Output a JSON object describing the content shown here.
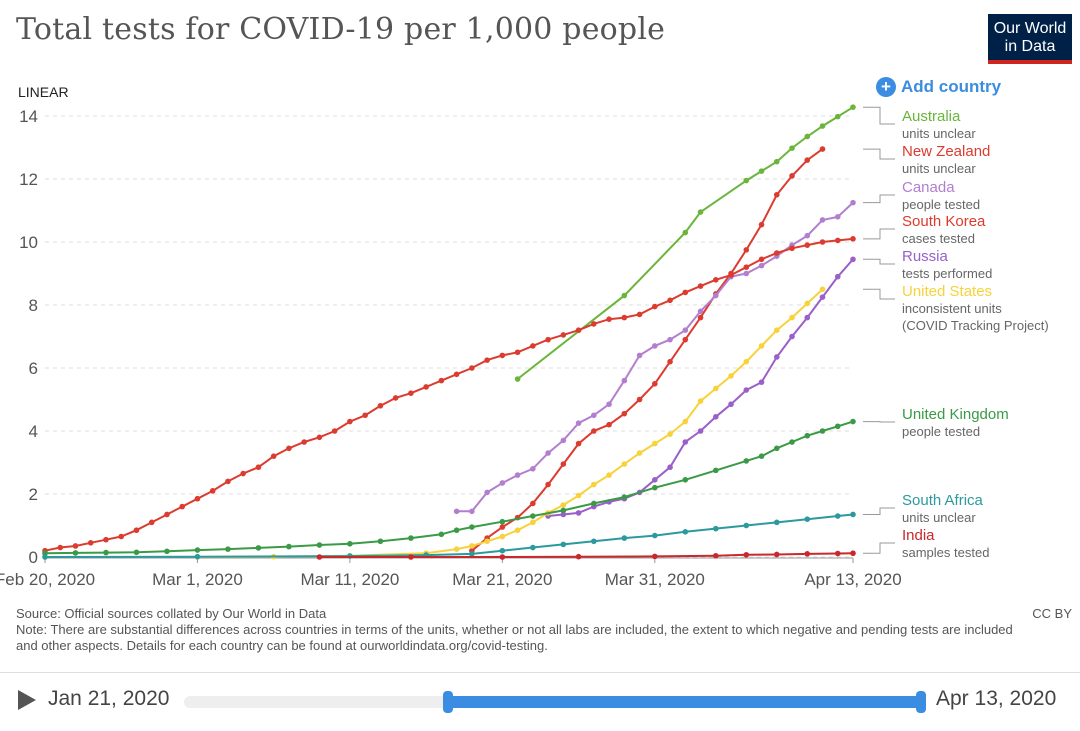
{
  "header": {
    "title": "Total tests for COVID-19 per 1,000 people",
    "logo_line1": "Our World",
    "logo_line2": "in Data",
    "scale_label": "LINEAR",
    "add_country_label": "Add country"
  },
  "footer": {
    "source": "Source: Official sources collated by Our World in Data",
    "note": "Note: There are substantial differences across countries in terms of the units, whether or not all labs are included, the extent to which negative and pending tests are included and other aspects. Details for each country can be found at ourworldindata.org/covid-testing.",
    "license": "CC BY"
  },
  "timeline": {
    "start_label": "Jan 21, 2020",
    "end_label": "Apr 13, 2020",
    "colors": {
      "track": "#eeeeee",
      "range": "#3a8de0"
    }
  },
  "chart_data": {
    "type": "line",
    "title": "Total tests for COVID-19 per 1,000 people",
    "xlabel": "",
    "ylabel": "",
    "scale": "linear",
    "x_start": "2020-02-20",
    "x_end": "2020-04-13",
    "x_ticks": [
      {
        "day": 0,
        "label": "Feb 20, 2020"
      },
      {
        "day": 10,
        "label": "Mar 1, 2020"
      },
      {
        "day": 20,
        "label": "Mar 11, 2020"
      },
      {
        "day": 30,
        "label": "Mar 21, 2020"
      },
      {
        "day": 40,
        "label": "Mar 31, 2020"
      },
      {
        "day": 53,
        "label": "Apr 13, 2020"
      }
    ],
    "ylim": [
      0,
      14
    ],
    "y_ticks": [
      0,
      2,
      4,
      6,
      8,
      10,
      12,
      14
    ],
    "grid": "horizontal dashed",
    "legend": "right",
    "series": [
      {
        "name": "Australia",
        "unit": "units unclear",
        "color": "#6ab53a",
        "points": [
          [
            31,
            5.65
          ],
          [
            38,
            8.3
          ],
          [
            42,
            10.3
          ],
          [
            43,
            10.95
          ],
          [
            46,
            11.95
          ],
          [
            47,
            12.25
          ],
          [
            48,
            12.55
          ],
          [
            49,
            12.98
          ],
          [
            50,
            13.35
          ],
          [
            51,
            13.68
          ],
          [
            52,
            13.98
          ],
          [
            53,
            14.28
          ]
        ]
      },
      {
        "name": "New Zealand",
        "unit": "units unclear",
        "color": "#dc3b2f",
        "points": [
          [
            28,
            0.2
          ],
          [
            29,
            0.6
          ],
          [
            30,
            0.95
          ],
          [
            31,
            1.25
          ],
          [
            32,
            1.7
          ],
          [
            33,
            2.3
          ],
          [
            34,
            2.95
          ],
          [
            35,
            3.6
          ],
          [
            36,
            4.0
          ],
          [
            37,
            4.2
          ],
          [
            38,
            4.55
          ],
          [
            39,
            5.0
          ],
          [
            40,
            5.5
          ],
          [
            41,
            6.2
          ],
          [
            42,
            6.9
          ],
          [
            43,
            7.6
          ],
          [
            44,
            8.35
          ],
          [
            45,
            9.0
          ],
          [
            46,
            9.75
          ],
          [
            47,
            10.55
          ],
          [
            48,
            11.5
          ],
          [
            49,
            12.1
          ],
          [
            50,
            12.6
          ],
          [
            51,
            12.95
          ]
        ]
      },
      {
        "name": "Canada",
        "unit": "people tested",
        "color": "#b27fcf",
        "points": [
          [
            27,
            1.45
          ],
          [
            28,
            1.45
          ],
          [
            29,
            2.05
          ],
          [
            30,
            2.35
          ],
          [
            31,
            2.6
          ],
          [
            32,
            2.8
          ],
          [
            33,
            3.3
          ],
          [
            34,
            3.7
          ],
          [
            35,
            4.25
          ],
          [
            36,
            4.5
          ],
          [
            37,
            4.85
          ],
          [
            38,
            5.6
          ],
          [
            39,
            6.4
          ],
          [
            40,
            6.7
          ],
          [
            41,
            6.9
          ],
          [
            42,
            7.2
          ],
          [
            43,
            7.8
          ],
          [
            44,
            8.3
          ],
          [
            45,
            8.9
          ],
          [
            46,
            9.0
          ],
          [
            47,
            9.25
          ],
          [
            48,
            9.55
          ],
          [
            49,
            9.9
          ],
          [
            50,
            10.2
          ],
          [
            51,
            10.7
          ],
          [
            52,
            10.8
          ],
          [
            53,
            11.25
          ]
        ]
      },
      {
        "name": "South Korea",
        "unit": "cases tested",
        "color": "#dc3b2f",
        "points": [
          [
            0,
            0.2
          ],
          [
            1,
            0.3
          ],
          [
            2,
            0.35
          ],
          [
            3,
            0.45
          ],
          [
            4,
            0.55
          ],
          [
            5,
            0.65
          ],
          [
            6,
            0.85
          ],
          [
            7,
            1.1
          ],
          [
            8,
            1.35
          ],
          [
            9,
            1.6
          ],
          [
            10,
            1.85
          ],
          [
            11,
            2.1
          ],
          [
            12,
            2.4
          ],
          [
            13,
            2.65
          ],
          [
            14,
            2.85
          ],
          [
            15,
            3.2
          ],
          [
            16,
            3.45
          ],
          [
            17,
            3.65
          ],
          [
            18,
            3.8
          ],
          [
            19,
            4.0
          ],
          [
            20,
            4.3
          ],
          [
            21,
            4.5
          ],
          [
            22,
            4.8
          ],
          [
            23,
            5.05
          ],
          [
            24,
            5.2
          ],
          [
            25,
            5.4
          ],
          [
            26,
            5.6
          ],
          [
            27,
            5.8
          ],
          [
            28,
            6.0
          ],
          [
            29,
            6.25
          ],
          [
            30,
            6.4
          ],
          [
            31,
            6.5
          ],
          [
            32,
            6.7
          ],
          [
            33,
            6.9
          ],
          [
            34,
            7.05
          ],
          [
            35,
            7.2
          ],
          [
            36,
            7.4
          ],
          [
            37,
            7.55
          ],
          [
            38,
            7.6
          ],
          [
            39,
            7.7
          ],
          [
            40,
            7.95
          ],
          [
            41,
            8.15
          ],
          [
            42,
            8.4
          ],
          [
            43,
            8.6
          ],
          [
            44,
            8.8
          ],
          [
            45,
            8.95
          ],
          [
            46,
            9.2
          ],
          [
            47,
            9.45
          ],
          [
            48,
            9.65
          ],
          [
            49,
            9.8
          ],
          [
            50,
            9.9
          ],
          [
            51,
            10.0
          ],
          [
            52,
            10.05
          ],
          [
            53,
            10.1
          ]
        ]
      },
      {
        "name": "Russia",
        "unit": "tests performed",
        "color": "#9a5fc9",
        "points": [
          [
            33,
            1.3
          ],
          [
            34,
            1.35
          ],
          [
            35,
            1.4
          ],
          [
            36,
            1.6
          ],
          [
            37,
            1.75
          ],
          [
            38,
            1.85
          ],
          [
            39,
            2.05
          ],
          [
            40,
            2.45
          ],
          [
            41,
            2.85
          ],
          [
            42,
            3.65
          ],
          [
            43,
            4.0
          ],
          [
            44,
            4.45
          ],
          [
            45,
            4.85
          ],
          [
            46,
            5.3
          ],
          [
            47,
            5.55
          ],
          [
            48,
            6.35
          ],
          [
            49,
            7.0
          ],
          [
            50,
            7.6
          ],
          [
            51,
            8.25
          ],
          [
            52,
            8.9
          ],
          [
            53,
            9.45
          ]
        ]
      },
      {
        "name": "United States",
        "unit": "inconsistent units (COVID Tracking Project)",
        "color": "#f7d23a",
        "points": [
          [
            10,
            0.0
          ],
          [
            15,
            0.01
          ],
          [
            20,
            0.04
          ],
          [
            25,
            0.12
          ],
          [
            27,
            0.25
          ],
          [
            28,
            0.35
          ],
          [
            29,
            0.5
          ],
          [
            30,
            0.65
          ],
          [
            31,
            0.85
          ],
          [
            32,
            1.1
          ],
          [
            33,
            1.4
          ],
          [
            34,
            1.65
          ],
          [
            35,
            1.95
          ],
          [
            36,
            2.3
          ],
          [
            37,
            2.6
          ],
          [
            38,
            2.95
          ],
          [
            39,
            3.3
          ],
          [
            40,
            3.6
          ],
          [
            41,
            3.9
          ],
          [
            42,
            4.3
          ],
          [
            43,
            4.95
          ],
          [
            44,
            5.35
          ],
          [
            45,
            5.75
          ],
          [
            46,
            6.2
          ],
          [
            47,
            6.7
          ],
          [
            48,
            7.2
          ],
          [
            49,
            7.6
          ],
          [
            50,
            8.05
          ],
          [
            51,
            8.5
          ]
        ]
      },
      {
        "name": "United Kingdom",
        "unit": "people tested",
        "color": "#3a9a46",
        "points": [
          [
            0,
            0.12
          ],
          [
            2,
            0.13
          ],
          [
            4,
            0.14
          ],
          [
            6,
            0.15
          ],
          [
            8,
            0.18
          ],
          [
            10,
            0.22
          ],
          [
            12,
            0.25
          ],
          [
            14,
            0.29
          ],
          [
            16,
            0.33
          ],
          [
            18,
            0.38
          ],
          [
            20,
            0.42
          ],
          [
            22,
            0.5
          ],
          [
            24,
            0.6
          ],
          [
            26,
            0.72
          ],
          [
            27,
            0.85
          ],
          [
            28,
            0.95
          ],
          [
            30,
            1.12
          ],
          [
            32,
            1.3
          ],
          [
            34,
            1.48
          ],
          [
            36,
            1.7
          ],
          [
            38,
            1.9
          ],
          [
            40,
            2.2
          ],
          [
            42,
            2.45
          ],
          [
            44,
            2.75
          ],
          [
            46,
            3.05
          ],
          [
            47,
            3.2
          ],
          [
            48,
            3.45
          ],
          [
            49,
            3.65
          ],
          [
            50,
            3.85
          ],
          [
            51,
            4.0
          ],
          [
            52,
            4.15
          ],
          [
            53,
            4.3
          ]
        ]
      },
      {
        "name": "South Africa",
        "unit": "units unclear",
        "color": "#2b9a9e",
        "points": [
          [
            0,
            0.0
          ],
          [
            10,
            0.01
          ],
          [
            20,
            0.03
          ],
          [
            25,
            0.06
          ],
          [
            28,
            0.1
          ],
          [
            30,
            0.2
          ],
          [
            32,
            0.3
          ],
          [
            34,
            0.4
          ],
          [
            36,
            0.5
          ],
          [
            38,
            0.6
          ],
          [
            40,
            0.68
          ],
          [
            42,
            0.8
          ],
          [
            44,
            0.9
          ],
          [
            46,
            1.0
          ],
          [
            48,
            1.1
          ],
          [
            50,
            1.2
          ],
          [
            52,
            1.3
          ],
          [
            53,
            1.35
          ]
        ]
      },
      {
        "name": "India",
        "unit": "samples tested",
        "color": "#c9282d",
        "points": [
          [
            18,
            0.0
          ],
          [
            24,
            0.0
          ],
          [
            30,
            0.0
          ],
          [
            35,
            0.01
          ],
          [
            40,
            0.02
          ],
          [
            44,
            0.04
          ],
          [
            46,
            0.07
          ],
          [
            48,
            0.08
          ],
          [
            50,
            0.1
          ],
          [
            52,
            0.11
          ],
          [
            53,
            0.12
          ]
        ]
      }
    ]
  }
}
